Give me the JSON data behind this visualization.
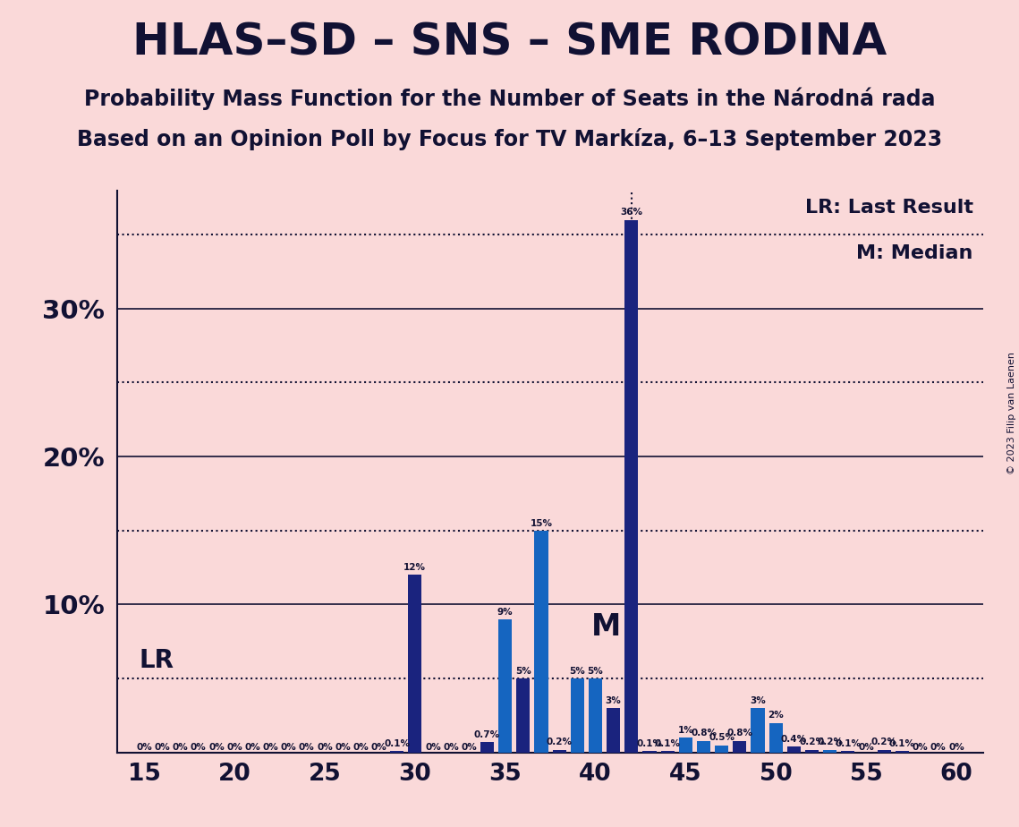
{
  "title": "HLAS–SD – SNS – SME RODINA",
  "subtitle1": "Probability Mass Function for the Number of Seats in the Národná rada",
  "subtitle2": "Based on an Opinion Poll by Focus for TV Markíza, 6–13 September 2023",
  "copyright": "© 2023 Filip van Laenen",
  "background_color": "#fad9d9",
  "bar_color_dark": "#1a237e",
  "bar_color_light": "#1565c0",
  "lr_line_y": 5.0,
  "lr_label": "LR",
  "lr_legend": "LR: Last Result",
  "median_seat": 42,
  "median_label": "M",
  "median_legend": "M: Median",
  "x_min": 13.5,
  "x_max": 61.5,
  "y_max": 38,
  "x_ticks": [
    15,
    20,
    25,
    30,
    35,
    40,
    45,
    50,
    55,
    60
  ],
  "y_ticks_solid": [
    10,
    20,
    30
  ],
  "y_ticks_dotted": [
    5,
    15,
    25,
    35
  ],
  "seats": [
    15,
    16,
    17,
    18,
    19,
    20,
    21,
    22,
    23,
    24,
    25,
    26,
    27,
    28,
    29,
    30,
    31,
    32,
    33,
    34,
    35,
    36,
    37,
    38,
    39,
    40,
    41,
    42,
    43,
    44,
    45,
    46,
    47,
    48,
    49,
    50,
    51,
    52,
    53,
    54,
    55,
    56,
    57,
    58,
    59,
    60
  ],
  "probabilities": [
    0,
    0,
    0,
    0,
    0,
    0,
    0,
    0,
    0,
    0,
    0,
    0,
    0,
    0,
    0.1,
    12,
    0,
    0,
    0,
    0.7,
    9,
    5,
    15,
    0.2,
    5,
    5,
    3,
    36,
    0.1,
    0.1,
    1.0,
    0.8,
    0.5,
    0.8,
    3,
    2,
    0.4,
    0.2,
    0.2,
    0.1,
    0,
    0.2,
    0.1,
    0,
    0,
    0
  ],
  "bar_colors": [
    "#1a237e",
    "#1a237e",
    "#1a237e",
    "#1a237e",
    "#1a237e",
    "#1a237e",
    "#1a237e",
    "#1a237e",
    "#1a237e",
    "#1a237e",
    "#1a237e",
    "#1a237e",
    "#1a237e",
    "#1a237e",
    "#1a237e",
    "#1a237e",
    "#1a237e",
    "#1a237e",
    "#1a237e",
    "#1a237e",
    "#1565c0",
    "#1a237e",
    "#1565c0",
    "#1a237e",
    "#1565c0",
    "#1565c0",
    "#1a237e",
    "#1a237e",
    "#1a237e",
    "#1a237e",
    "#1565c0",
    "#1565c0",
    "#1565c0",
    "#1a237e",
    "#1565c0",
    "#1565c0",
    "#1a237e",
    "#1a237e",
    "#1565c0",
    "#1a237e",
    "#1a237e",
    "#1a237e",
    "#1a237e",
    "#1a237e",
    "#1a237e",
    "#1a237e"
  ],
  "label_fontsize": 7.5,
  "title_fontsize": 36,
  "subtitle_fontsize": 17,
  "tick_fontsize": 19,
  "lr_text_fontsize": 20,
  "median_text_fontsize": 24,
  "legend_fontsize": 16,
  "copyright_fontsize": 8
}
